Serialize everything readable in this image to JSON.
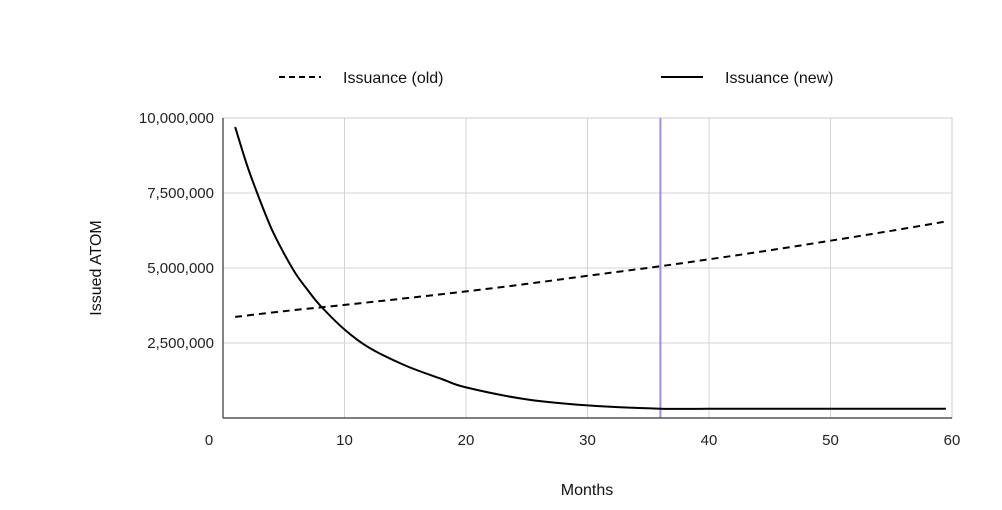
{
  "chart_data": {
    "type": "line",
    "title": "",
    "xlabel": "Months",
    "ylabel": "Issued ATOM",
    "xlim": [
      0,
      60
    ],
    "ylim": [
      0,
      10000000
    ],
    "x_ticks": [
      0,
      10,
      20,
      30,
      40,
      50,
      60
    ],
    "y_ticks": [
      2500000,
      5000000,
      7500000,
      10000000
    ],
    "x_tick_labels": [
      "0",
      "10",
      "20",
      "30",
      "40",
      "50",
      "60"
    ],
    "y_tick_labels": [
      "2,500,000",
      "5,000,000",
      "7,500,000",
      "10,000,000"
    ],
    "grid": true,
    "legend": "top",
    "vertical_marker": {
      "x": 36,
      "color": "#9b8cf0"
    },
    "series": [
      {
        "name": "Issuance (old)",
        "style": "dashed",
        "color": "#000000",
        "x": [
          1,
          5,
          10,
          15,
          20,
          25,
          30,
          36,
          40,
          45,
          50,
          55,
          59.5
        ],
        "y": [
          3370000,
          3560000,
          3770000,
          3990000,
          4220000,
          4470000,
          4740000,
          5060000,
          5290000,
          5590000,
          5910000,
          6240000,
          6550000
        ]
      },
      {
        "name": "Issuance (new)",
        "style": "solid",
        "color": "#000000",
        "x": [
          1,
          2,
          3,
          4,
          5,
          6,
          7,
          8,
          10,
          12,
          15,
          18,
          20,
          25,
          30,
          36,
          40,
          45,
          50,
          55,
          59.5
        ],
        "y": [
          9700000,
          8400000,
          7300000,
          6300000,
          5500000,
          4800000,
          4250000,
          3750000,
          2950000,
          2350000,
          1750000,
          1300000,
          1020000,
          620000,
          420000,
          310000,
          310000,
          310000,
          310000,
          310000,
          310000
        ]
      }
    ]
  }
}
